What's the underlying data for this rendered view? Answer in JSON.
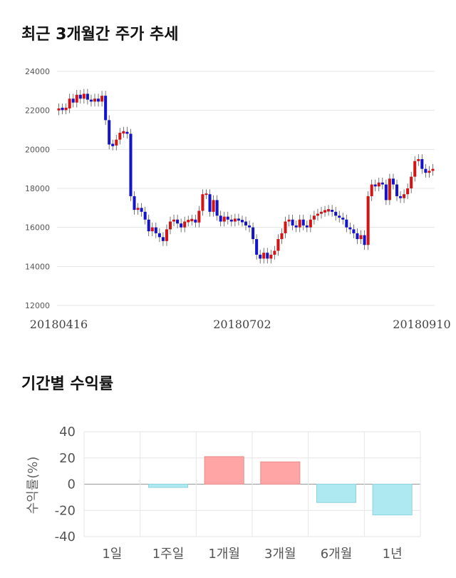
{
  "sections": {
    "price_title": "최근 3개월간 주가 추세",
    "returns_title": "기간별 수익률"
  },
  "colors": {
    "up": "#d21414",
    "down": "#1414c8",
    "positive_bar": "#ffa5a5",
    "negative_bar": "#aee8f0",
    "grid": "#e6e6e6"
  },
  "chart_data": [
    {
      "type": "candlestick",
      "ylim": [
        12000,
        24000
      ],
      "yticks": [
        12000,
        14000,
        16000,
        18000,
        20000,
        22000,
        24000
      ],
      "xtick_labels": [
        "20180416",
        "20180702",
        "20180910"
      ],
      "xtick_index": [
        0,
        51,
        101
      ],
      "grid": true,
      "closes": [
        22100,
        22050,
        22100,
        22600,
        22400,
        22800,
        22600,
        22850,
        22550,
        22450,
        22600,
        22450,
        22750,
        21500,
        20250,
        20200,
        20500,
        20850,
        20900,
        20800,
        17600,
        16900,
        17000,
        16800,
        16400,
        15800,
        16000,
        15700,
        15500,
        15300,
        15900,
        16300,
        16400,
        16200,
        16000,
        16300,
        16350,
        16400,
        16250,
        16850,
        17700,
        17700,
        16800,
        17400,
        16600,
        16300,
        16550,
        16400,
        16300,
        16450,
        16350,
        16300,
        16100,
        16000,
        15400,
        14600,
        14400,
        14700,
        14400,
        14600,
        14800,
        15400,
        15700,
        16300,
        16400,
        16100,
        16000,
        16400,
        16100,
        16000,
        16400,
        16600,
        16700,
        16800,
        16850,
        16900,
        16800,
        16600,
        16500,
        16400,
        16000,
        15900,
        15700,
        15400,
        15600,
        15100,
        17600,
        18200,
        18100,
        18300,
        18200,
        17400,
        18500,
        18200,
        17600,
        17500,
        17700,
        18000,
        18600,
        19400,
        19500,
        19000,
        18800,
        18900,
        19000
      ]
    },
    {
      "type": "bar",
      "categories": [
        "1일",
        "1주일",
        "1개월",
        "3개월",
        "6개월",
        "1년"
      ],
      "values": [
        0,
        -2.5,
        21,
        17,
        -14,
        -23.5
      ],
      "ylim": [
        -40,
        40
      ],
      "yticks": [
        -40,
        -20,
        0,
        20,
        40
      ],
      "ylabel": "수익률(%)",
      "grid": true
    }
  ]
}
